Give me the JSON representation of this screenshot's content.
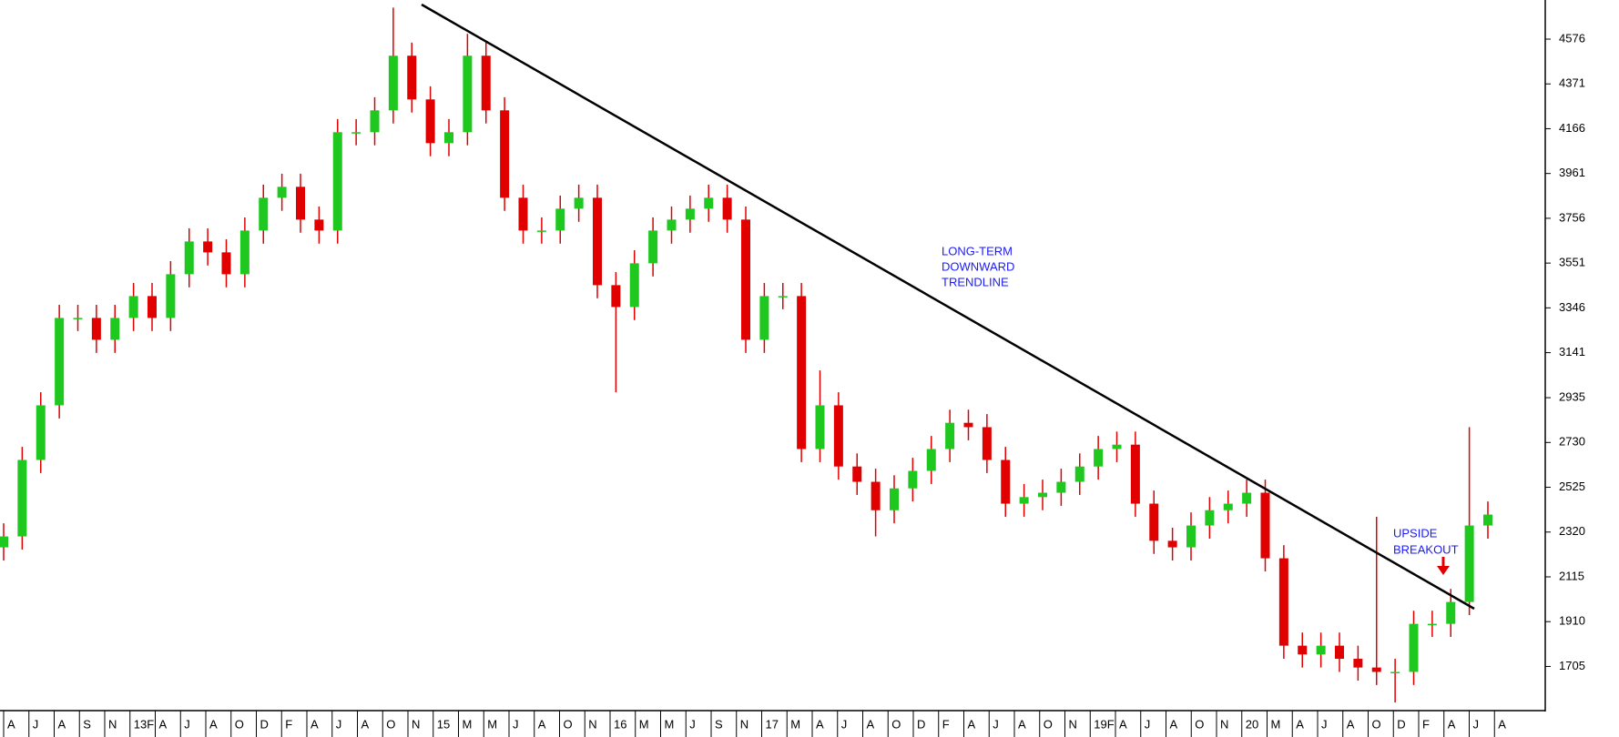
{
  "chart_data": {
    "type": "candlestick",
    "up_color": "#1ec81e",
    "down_color": "#e00000",
    "ylim": [
      1507,
      4755
    ],
    "yticks": [
      4576,
      4371,
      4166,
      3961,
      3756,
      3551,
      3346,
      3141,
      2935,
      2730,
      2525,
      2320,
      2115,
      1910,
      1705
    ],
    "x_labels": [
      "A",
      "J",
      "A",
      "S",
      "N",
      "13F",
      "A",
      "J",
      "A",
      "O",
      "D",
      "F",
      "A",
      "J",
      "A",
      "O",
      "N",
      "15",
      "M",
      "M",
      "J",
      "A",
      "O",
      "N",
      "16",
      "M",
      "M",
      "J",
      "S",
      "N",
      "17",
      "M",
      "A",
      "J",
      "A",
      "O",
      "D",
      "F",
      "A",
      "J",
      "A",
      "O",
      "N",
      "19F",
      "A",
      "J",
      "A",
      "O",
      "N",
      "20",
      "M",
      "A",
      "J",
      "A",
      "O",
      "D",
      "F",
      "A",
      "J",
      "A"
    ],
    "open": [
      2250,
      2300,
      2650,
      2900,
      3300,
      3300,
      3200,
      3300,
      3400,
      3300,
      3500,
      3650,
      3600,
      3500,
      3700,
      3850,
      3900,
      3750,
      3700,
      4150,
      4150,
      4250,
      4500,
      4300,
      4100,
      4150,
      4500,
      4250,
      3850,
      3700,
      3700,
      3800,
      3850,
      3450,
      3350,
      3550,
      3700,
      3750,
      3800,
      3850,
      3750,
      3200,
      3400,
      3400,
      2700,
      2900,
      2620,
      2550,
      2420,
      2520,
      2600,
      2700,
      2820,
      2800,
      2650,
      2450,
      2480,
      2500,
      2550,
      2620,
      2700,
      2720,
      2450,
      2280,
      2250,
      2350,
      2420,
      2450,
      2500,
      2200,
      1800,
      1760,
      1800,
      1740,
      1700,
      1680,
      1680,
      1900,
      1900,
      2000,
      2350
    ],
    "close": [
      2300,
      2650,
      2900,
      3300,
      3300,
      3200,
      3300,
      3400,
      3300,
      3500,
      3650,
      3600,
      3500,
      3700,
      3850,
      3900,
      3750,
      3700,
      4150,
      4150,
      4250,
      4500,
      4300,
      4100,
      4150,
      4500,
      4250,
      3850,
      3700,
      3700,
      3800,
      3850,
      3450,
      3350,
      3550,
      3700,
      3750,
      3800,
      3850,
      3750,
      3200,
      3400,
      3400,
      2700,
      2900,
      2620,
      2550,
      2420,
      2520,
      2600,
      2700,
      2820,
      2800,
      2650,
      2450,
      2480,
      2500,
      2550,
      2620,
      2700,
      2720,
      2450,
      2280,
      2250,
      2350,
      2420,
      2450,
      2500,
      2200,
      1800,
      1760,
      1800,
      1740,
      1700,
      1680,
      1680,
      1900,
      1900,
      2000,
      2350,
      2400
    ],
    "high": [
      2360,
      2710,
      2960,
      3360,
      3360,
      3360,
      3360,
      3460,
      3460,
      3560,
      3710,
      3710,
      3660,
      3760,
      3910,
      3960,
      3960,
      3810,
      4210,
      4210,
      4310,
      4720,
      4560,
      4360,
      4210,
      4600,
      4560,
      4310,
      3910,
      3760,
      3860,
      3910,
      3910,
      3510,
      3610,
      3760,
      3810,
      3860,
      3910,
      3910,
      3810,
      3460,
      3460,
      3460,
      3060,
      2960,
      2680,
      2610,
      2580,
      2660,
      2760,
      2880,
      2880,
      2860,
      2710,
      2540,
      2560,
      2610,
      2680,
      2760,
      2780,
      2780,
      2510,
      2340,
      2410,
      2480,
      2510,
      2560,
      2560,
      2260,
      1860,
      1860,
      1860,
      1800,
      2390,
      1740,
      1960,
      1960,
      2060,
      2800,
      2460
    ],
    "low": [
      2190,
      2240,
      2590,
      2840,
      3240,
      3140,
      3140,
      3240,
      3240,
      3240,
      3440,
      3540,
      3440,
      3440,
      3640,
      3790,
      3690,
      3640,
      3640,
      4090,
      4090,
      4190,
      4240,
      4040,
      4040,
      4090,
      4190,
      3790,
      3640,
      3640,
      3640,
      3740,
      3390,
      2960,
      3290,
      3490,
      3640,
      3690,
      3740,
      3690,
      3140,
      3140,
      3340,
      2640,
      2640,
      2560,
      2490,
      2300,
      2360,
      2460,
      2540,
      2640,
      2740,
      2590,
      2390,
      2390,
      2420,
      2440,
      2490,
      2560,
      2640,
      2390,
      2220,
      2190,
      2190,
      2290,
      2360,
      2390,
      2140,
      1740,
      1700,
      1700,
      1680,
      1640,
      1620,
      1540,
      1620,
      1840,
      1840,
      1940,
      2290
    ],
    "annotations": [
      [
        "LONG-TERM",
        "DOWNWARD",
        "TRENDLINE"
      ],
      [
        "UPSIDE",
        "BREAKOUT"
      ]
    ]
  }
}
